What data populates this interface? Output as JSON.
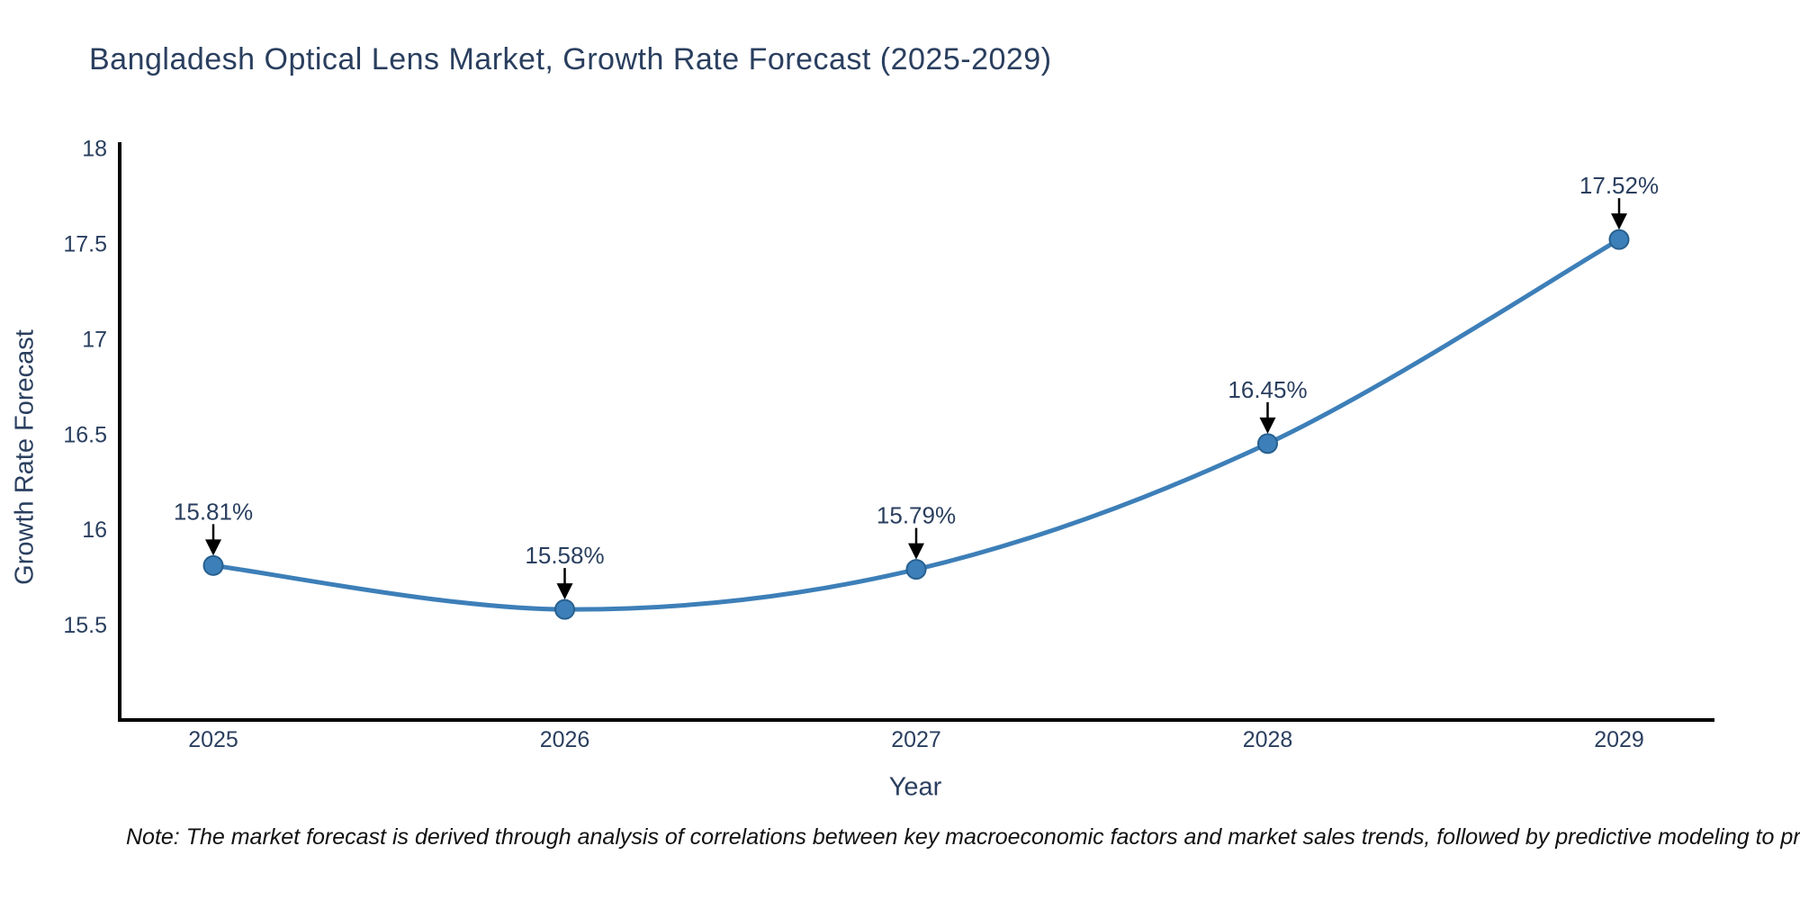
{
  "chart": {
    "title": "Bangladesh Optical Lens Market, Growth Rate Forecast (2025-2029)"
  },
  "note": {
    "text": "Note: The market forecast is derived through analysis of correlations between key macroeconomic factors and market sales trends, followed by predictive modeling to project future sal"
  },
  "chart_data": {
    "type": "line",
    "title": "Bangladesh Optical Lens Market, Growth Rate Forecast (2025-2029)",
    "x": [
      "2025",
      "2026",
      "2027",
      "2028",
      "2029"
    ],
    "series": [
      {
        "name": "Growth Rate Forecast",
        "values": [
          15.81,
          15.58,
          15.79,
          16.45,
          17.52
        ]
      }
    ],
    "point_labels": [
      "15.81%",
      "15.58%",
      "15.79%",
      "16.45%",
      "17.52%"
    ],
    "xlabel": "Year",
    "ylabel": "Growth Rate Forecast",
    "ylim": [
      15,
      18
    ],
    "yticks": [
      15.5,
      16,
      16.5,
      17,
      17.5,
      18
    ],
    "grid": false,
    "legend": "none",
    "line_shape": "spline",
    "annotations_style": "value-label-with-down-arrow",
    "colors": {
      "line": "#3d7fb8",
      "marker_fill": "#3d7fb8",
      "marker_edge": "#27608f",
      "arrow": "#000000",
      "axis": "#000000",
      "tick_text": "#2a3f5f",
      "title_text": "#2a3f5f",
      "note_text": "#111111",
      "background": "#ffffff"
    }
  }
}
